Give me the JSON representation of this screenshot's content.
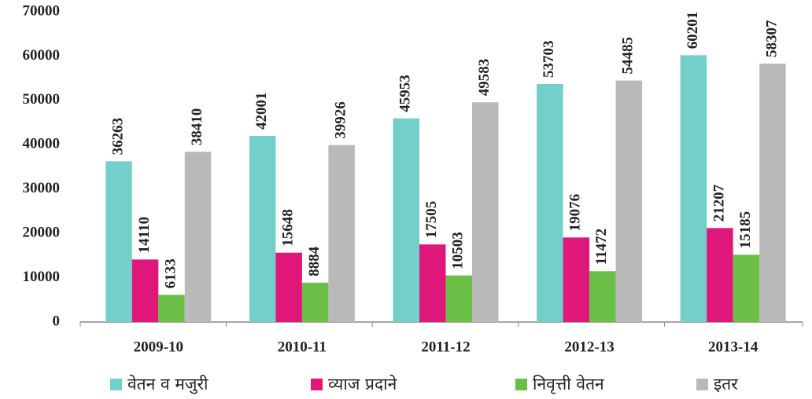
{
  "chart_data": {
    "type": "bar",
    "categories": [
      "2009-10",
      "2010-11",
      "2011-12",
      "2012-13",
      "2013-14"
    ],
    "series": [
      {
        "name": "वेतन व मजुरी",
        "color": "#72cfc9",
        "values": [
          36263,
          42001,
          45953,
          53703,
          60201
        ]
      },
      {
        "name": "व्याज प्रदाने",
        "color": "#e0177a",
        "values": [
          14110,
          15648,
          17505,
          19076,
          21207
        ]
      },
      {
        "name": "निवृत्ती वेतन",
        "color": "#6bbf47",
        "values": [
          6133,
          8884,
          10503,
          11472,
          15185
        ]
      },
      {
        "name": "इतर",
        "color": "#b9b9b9",
        "values": [
          38410,
          39926,
          49583,
          54485,
          58307
        ]
      }
    ],
    "ylim": [
      0,
      70000
    ],
    "yticks": [
      0,
      10000,
      20000,
      30000,
      40000,
      50000,
      60000,
      70000
    ],
    "grid": false,
    "legend": "bottom"
  }
}
